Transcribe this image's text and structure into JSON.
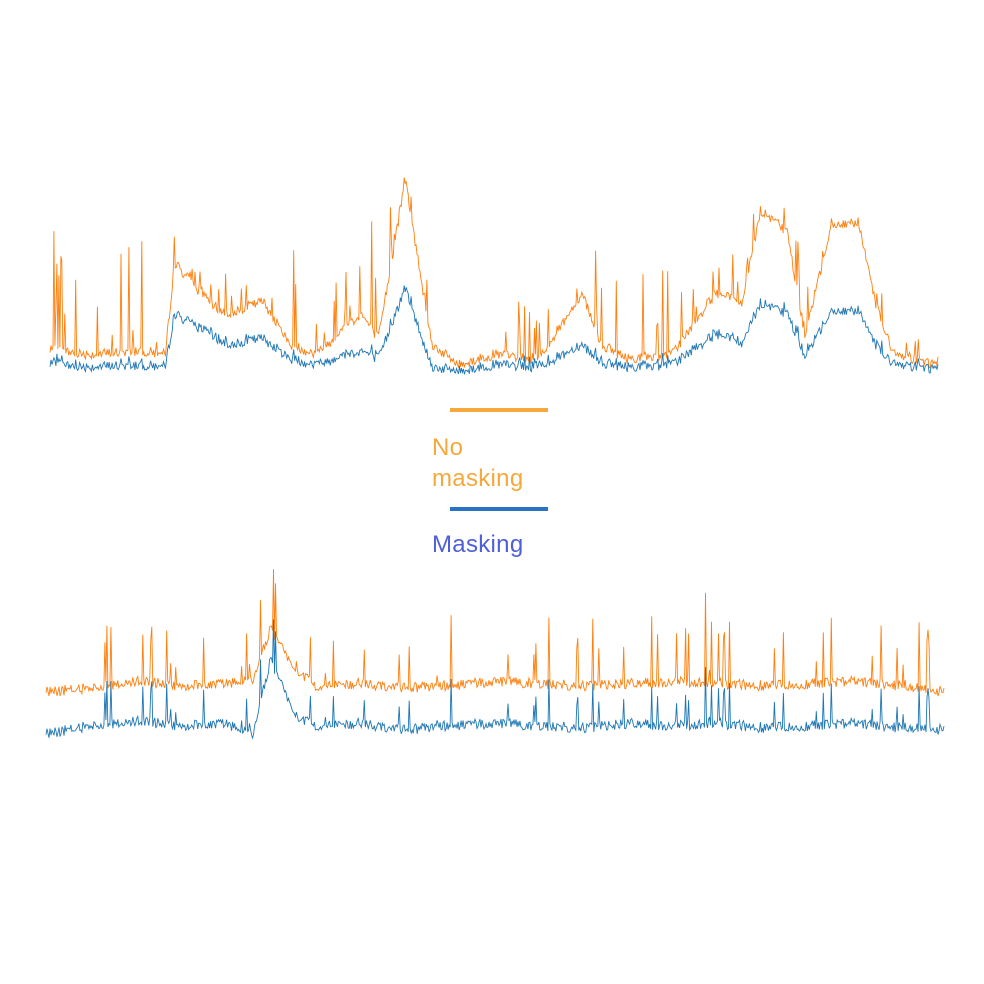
{
  "colors": {
    "no_masking_line": "#ff7f0e",
    "masking_line": "#1f77b4",
    "legend_no_masking_swatch": "#f5a93a",
    "legend_no_masking_text": "#f5a93a",
    "legend_masking_swatch": "#2a72c4",
    "legend_masking_text": "#4f5fd8"
  },
  "legend": {
    "items": [
      {
        "label": "No masking",
        "series": "no_masking"
      },
      {
        "label": "Masking",
        "series": "masking"
      }
    ]
  },
  "chart_data": [
    {
      "type": "line",
      "title": "",
      "xlabel": "",
      "ylabel": "",
      "grid": false,
      "axes_visible": false,
      "x": [
        0,
        0.05,
        0.1,
        0.13,
        0.14,
        0.18,
        0.2,
        0.24,
        0.27,
        0.3,
        0.35,
        0.37,
        0.4,
        0.43,
        0.46,
        0.5,
        0.55,
        0.6,
        0.62,
        0.65,
        0.7,
        0.75,
        0.78,
        0.8,
        0.83,
        0.85,
        0.88,
        0.91,
        0.93,
        0.95,
        1.0
      ],
      "series": [
        {
          "name": "No masking",
          "values": [
            0.12,
            0.1,
            0.12,
            0.1,
            0.55,
            0.35,
            0.3,
            0.36,
            0.15,
            0.1,
            0.3,
            0.18,
            0.95,
            0.15,
            0.05,
            0.1,
            0.08,
            0.4,
            0.15,
            0.08,
            0.1,
            0.4,
            0.35,
            0.8,
            0.7,
            0.2,
            0.72,
            0.75,
            0.35,
            0.1,
            0.05
          ],
          "peak_values": [
            0.72,
            0.7,
            0.68,
            0.65,
            0.88,
            0.6,
            0.52,
            0.55,
            0.62,
            0.7,
            0.85,
            0.78,
            1.0,
            0.42,
            0.4,
            0.42,
            0.38,
            0.7,
            0.68,
            0.55,
            0.5,
            0.62,
            0.7,
            0.9,
            0.8,
            0.55,
            0.78,
            0.75,
            0.5,
            0.25,
            0.15
          ]
        },
        {
          "name": "Masking",
          "values": [
            0.05,
            0.04,
            0.05,
            0.04,
            0.3,
            0.2,
            0.15,
            0.18,
            0.08,
            0.05,
            0.12,
            0.08,
            0.42,
            0.04,
            0.02,
            0.05,
            0.04,
            0.15,
            0.06,
            0.04,
            0.05,
            0.2,
            0.15,
            0.35,
            0.3,
            0.1,
            0.3,
            0.32,
            0.15,
            0.05,
            0.03
          ],
          "peak_values": [
            0.1,
            0.09,
            0.1,
            0.09,
            0.34,
            0.24,
            0.19,
            0.22,
            0.12,
            0.09,
            0.16,
            0.12,
            0.46,
            0.08,
            0.06,
            0.09,
            0.08,
            0.19,
            0.1,
            0.08,
            0.09,
            0.24,
            0.19,
            0.39,
            0.34,
            0.14,
            0.34,
            0.36,
            0.19,
            0.09,
            0.07
          ]
        }
      ]
    },
    {
      "type": "line",
      "title": "",
      "xlabel": "",
      "ylabel": "",
      "grid": false,
      "axes_visible": false,
      "x": [
        0,
        0.05,
        0.1,
        0.15,
        0.2,
        0.23,
        0.25,
        0.28,
        0.3,
        0.35,
        0.4,
        0.45,
        0.5,
        0.55,
        0.6,
        0.65,
        0.7,
        0.75,
        0.8,
        0.85,
        0.9,
        0.95,
        1.0
      ],
      "series": [
        {
          "name": "No masking",
          "values": [
            0.3,
            0.32,
            0.35,
            0.33,
            0.34,
            0.36,
            0.6,
            0.4,
            0.33,
            0.34,
            0.32,
            0.33,
            0.35,
            0.34,
            0.33,
            0.34,
            0.35,
            0.34,
            0.33,
            0.34,
            0.35,
            0.33,
            0.3
          ],
          "peak_values": [
            0.6,
            0.65,
            0.7,
            0.62,
            0.68,
            0.72,
            1.0,
            0.85,
            0.7,
            0.72,
            0.68,
            0.7,
            0.72,
            0.68,
            0.7,
            0.68,
            0.9,
            0.7,
            0.68,
            0.72,
            0.75,
            0.78,
            0.55
          ]
        },
        {
          "name": "Masking",
          "values": [
            0.1,
            0.14,
            0.16,
            0.14,
            0.15,
            0.1,
            0.45,
            0.18,
            0.14,
            0.15,
            0.12,
            0.14,
            0.15,
            0.14,
            0.13,
            0.15,
            0.14,
            0.15,
            0.13,
            0.14,
            0.15,
            0.13,
            0.12
          ],
          "peak_values": [
            0.3,
            0.38,
            0.42,
            0.36,
            0.4,
            0.35,
            0.75,
            0.45,
            0.38,
            0.4,
            0.36,
            0.38,
            0.4,
            0.38,
            0.36,
            0.38,
            0.42,
            0.4,
            0.36,
            0.38,
            0.42,
            0.4,
            0.3
          ]
        }
      ]
    }
  ]
}
